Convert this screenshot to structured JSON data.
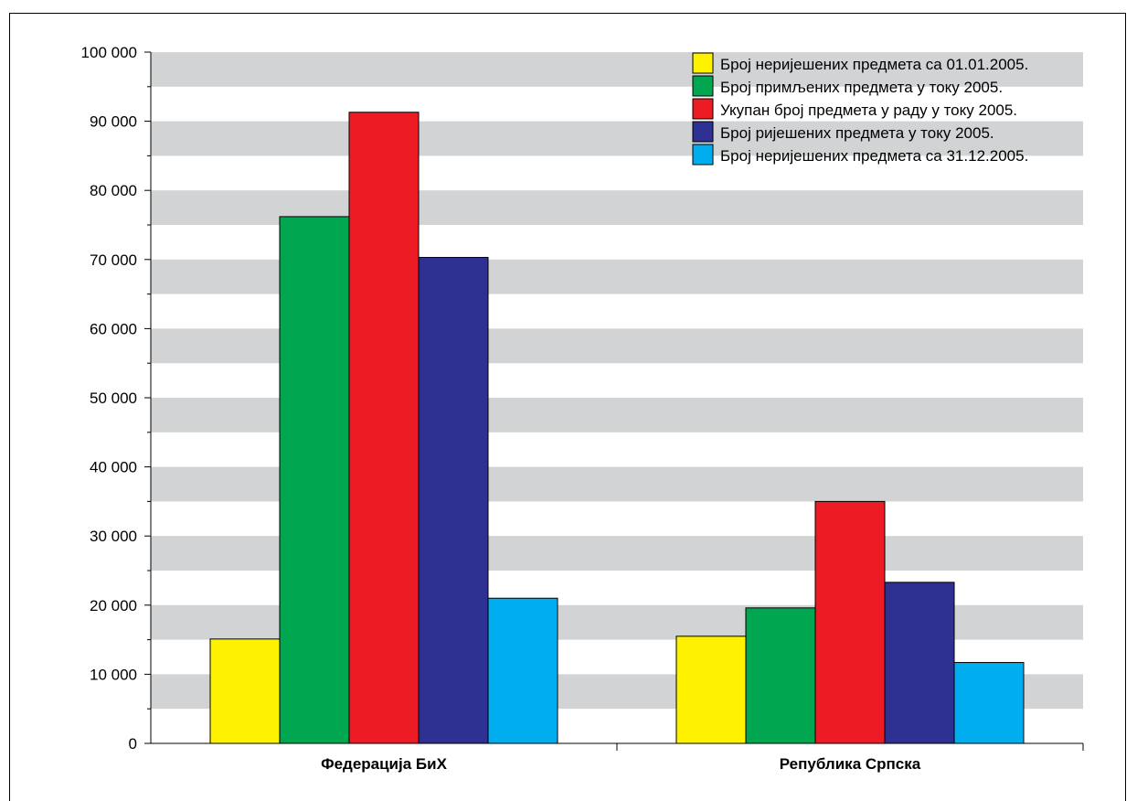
{
  "chart_data": {
    "type": "bar",
    "title": "",
    "xlabel": "",
    "ylabel": "",
    "categories": [
      "Федерација БиХ",
      "Република Српска"
    ],
    "series": [
      {
        "name": "Број неријешених предмета са 01.01.2005.",
        "color": "#fff200",
        "values": [
          15100,
          15500
        ]
      },
      {
        "name": "Број примљених предмета у току 2005.",
        "color": "#00a650",
        "values": [
          76200,
          19600
        ]
      },
      {
        "name": "Укупан број предмета у раду у току 2005.",
        "color": "#ed1c24",
        "values": [
          91300,
          35000
        ]
      },
      {
        "name": "Број ријешених предмета у току 2005.",
        "color": "#2e3192",
        "values": [
          70300,
          23300
        ]
      },
      {
        "name": "Број неријешених предмета са 31.12.2005.",
        "color": "#00aeef",
        "values": [
          21000,
          11700
        ]
      }
    ],
    "ylim": [
      0,
      100000
    ],
    "yticks": [
      0,
      10000,
      20000,
      30000,
      40000,
      50000,
      60000,
      70000,
      80000,
      90000,
      100000
    ],
    "ytick_labels": [
      "0",
      "10 000",
      "20 000",
      "30 000",
      "40 000",
      "50 000",
      "60 000",
      "70 000",
      "80 000",
      "90 000",
      "100 000"
    ],
    "grid": "alternating horizontal bands",
    "band_color": "#d1d3d4",
    "legend_position": "top-right"
  }
}
